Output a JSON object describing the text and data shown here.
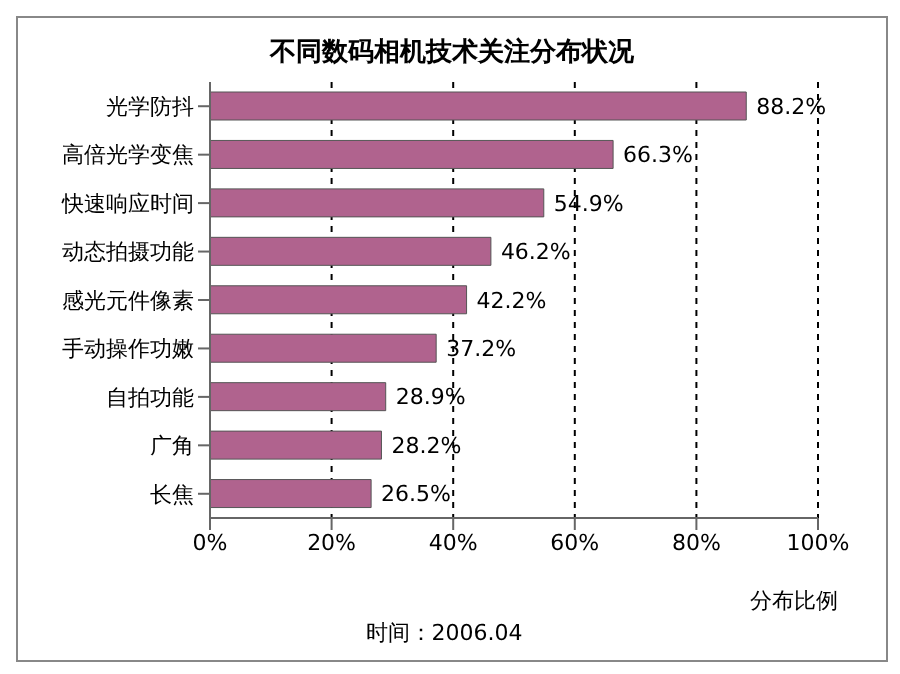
{
  "chart_data": {
    "type": "bar",
    "orientation": "horizontal",
    "title": "不同数码相机技术关注分布状况",
    "xlabel": "分布比例",
    "categories": [
      "光学防抖",
      "高倍光学变焦",
      "快速响应时间",
      "动态拍摄功能",
      "感光元件像素",
      "手动操作功嫩",
      "自拍功能",
      "广角",
      "长焦"
    ],
    "values": [
      88.2,
      66.3,
      54.9,
      46.2,
      42.2,
      37.2,
      28.9,
      28.2,
      26.5
    ],
    "value_labels": [
      "88.2%",
      "66.3%",
      "54.9%",
      "46.2%",
      "42.2%",
      "37.2%",
      "28.9%",
      "28.2%",
      "26.5%"
    ],
    "color": "#b0638e",
    "xlim": [
      0,
      100
    ],
    "xticks": [
      {
        "value": 0,
        "label": "0%"
      },
      {
        "value": 20,
        "label": "20%"
      },
      {
        "value": 40,
        "label": "40%"
      },
      {
        "value": 60,
        "label": "60%"
      },
      {
        "value": 80,
        "label": "80%"
      },
      {
        "value": 100,
        "label": "100%"
      }
    ],
    "grid": "x",
    "annotations": [
      "时间：2006.04"
    ]
  }
}
